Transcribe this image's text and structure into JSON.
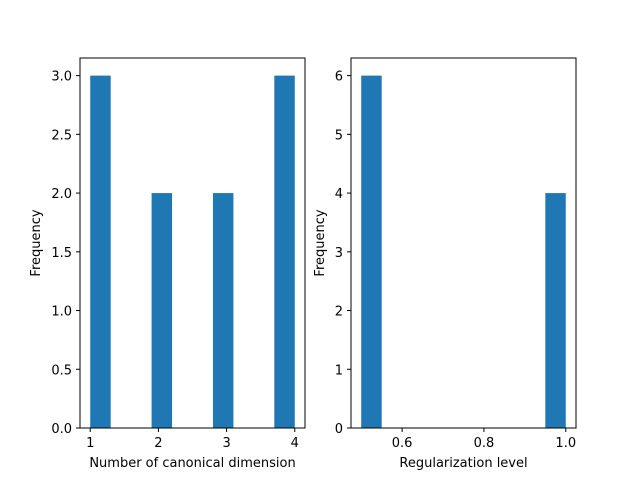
{
  "chart_data": [
    {
      "type": "bar",
      "kind": "histogram",
      "xlabel": "Number of canonical dimension",
      "ylabel": "Frequency",
      "xlim": [
        0.85,
        4.15
      ],
      "ylim": [
        0,
        3.15
      ],
      "xticks": [
        1,
        2,
        3,
        4
      ],
      "xtick_labels": [
        "1",
        "2",
        "3",
        "4"
      ],
      "yticks": [
        0,
        0.5,
        1.0,
        1.5,
        2.0,
        2.5,
        3.0
      ],
      "ytick_labels": [
        "0.0",
        "0.5",
        "1.0",
        "1.5",
        "2.0",
        "2.5",
        "3.0"
      ],
      "bar_color": "#1f77b4",
      "bars": [
        {
          "x0": 1.0,
          "x1": 1.3,
          "value": 3
        },
        {
          "x0": 1.9,
          "x1": 2.2,
          "value": 2
        },
        {
          "x0": 2.8,
          "x1": 3.1,
          "value": 2
        },
        {
          "x0": 3.7,
          "x1": 4.0,
          "value": 3
        }
      ]
    },
    {
      "type": "bar",
      "kind": "histogram",
      "xlabel": "Regularization level",
      "ylabel": "Frequency",
      "xlim": [
        0.475,
        1.025
      ],
      "ylim": [
        0,
        6.3
      ],
      "xticks": [
        0.6,
        0.8,
        1.0
      ],
      "xtick_labels": [
        "0.6",
        "0.8",
        "1.0"
      ],
      "yticks": [
        0,
        1,
        2,
        3,
        4,
        5,
        6
      ],
      "ytick_labels": [
        "0",
        "1",
        "2",
        "3",
        "4",
        "5",
        "6"
      ],
      "bar_color": "#1f77b4",
      "bars": [
        {
          "x0": 0.5,
          "x1": 0.55,
          "value": 6
        },
        {
          "x0": 0.95,
          "x1": 1.0,
          "value": 4
        }
      ]
    }
  ]
}
